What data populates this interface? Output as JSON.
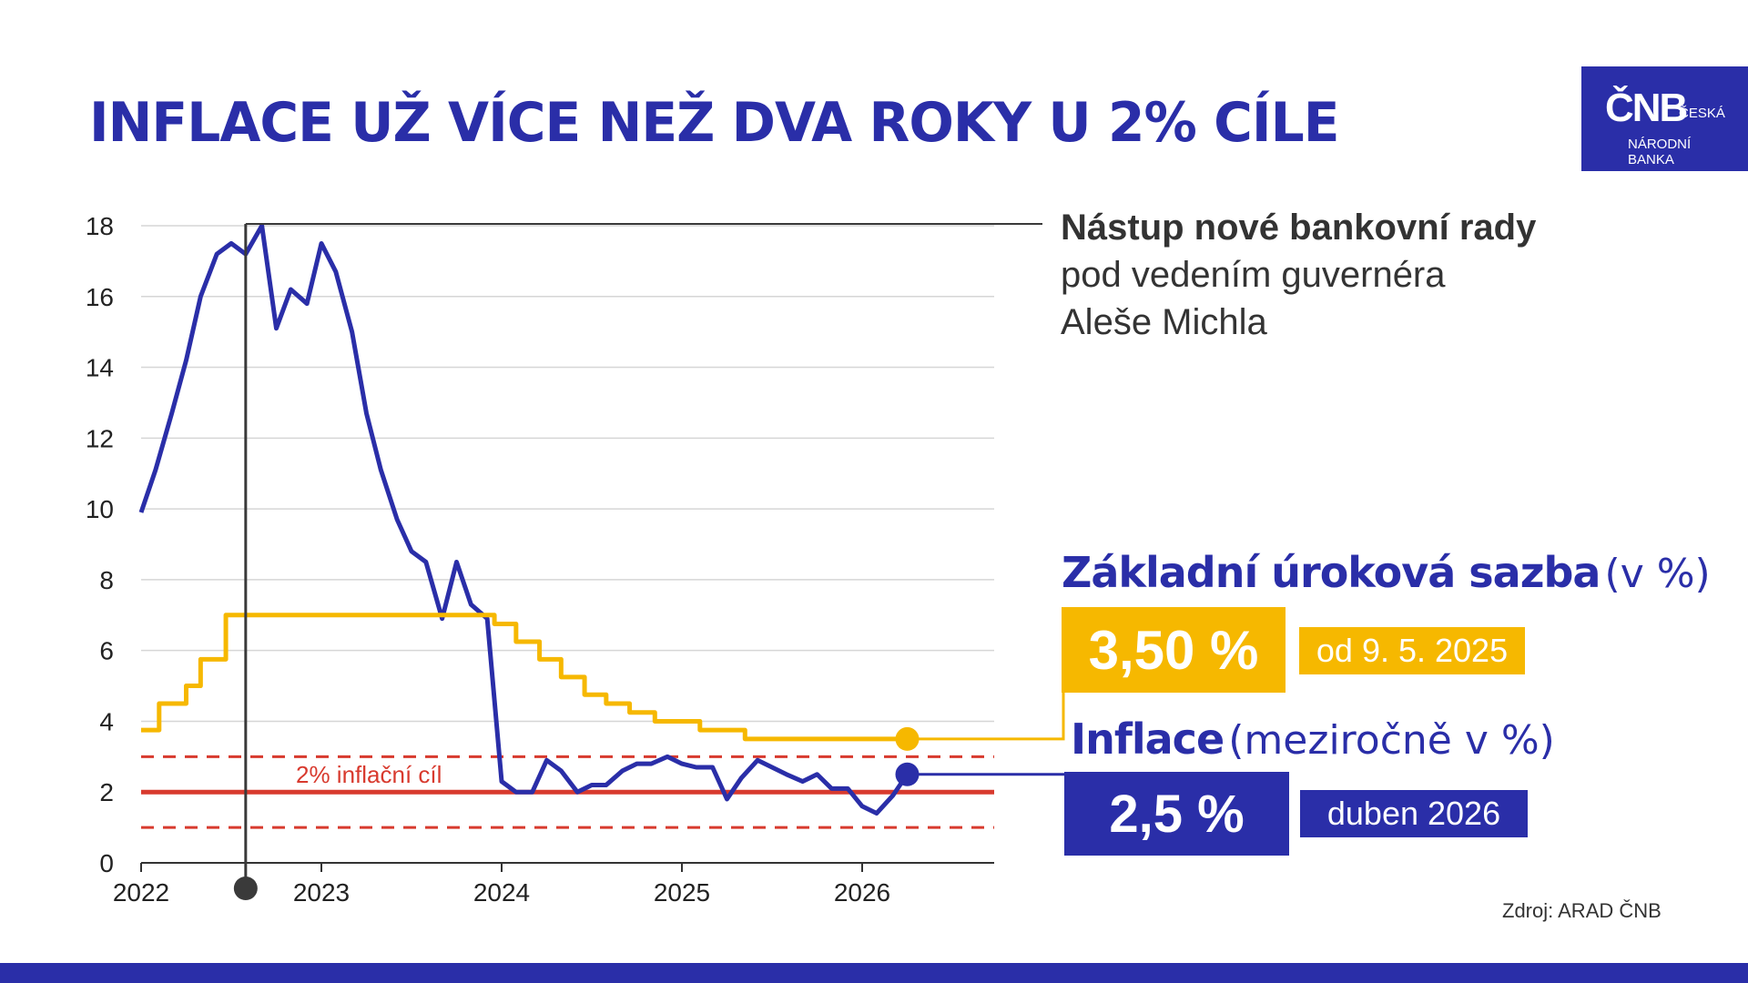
{
  "title": "INFLACE UŽ VÍCE NEŽ DVA ROKY U 2% CÍLE",
  "logo": {
    "mark": "ČNB",
    "line1": "ČESKÁ",
    "line2": "NÁRODNÍ",
    "line3": "BANKA"
  },
  "annotation": {
    "bold": "Nástup nové bankovní rady",
    "line2": "pod vedením guvernéra",
    "line3": "Aleše Michla"
  },
  "rate": {
    "heading": "Základní úroková sazba",
    "unit": "(v %)",
    "value": "3,50 %",
    "since": "od 9. 5. 2025"
  },
  "inflation": {
    "heading": "Inflace",
    "unit": "(meziročně v %)",
    "value": "2,5 %",
    "month": "duben 2026"
  },
  "source": "Zdroj: ARAD ČNB",
  "colors": {
    "brand_blue": "#2a2ea8",
    "rate_yellow": "#f6b800",
    "target_red": "#d83a2e",
    "marker_dark": "#3a3a3a"
  },
  "chart_data": {
    "type": "line",
    "ylim": [
      0,
      18
    ],
    "yticks": [
      0,
      2,
      4,
      6,
      8,
      10,
      12,
      14,
      16,
      18
    ],
    "xlim": [
      2022,
      2026.7
    ],
    "xticks": [
      2022,
      2023,
      2024,
      2025,
      2026
    ],
    "grid": true,
    "target": {
      "label": "2% inflační cíl",
      "value": 2,
      "band": [
        1,
        3
      ]
    },
    "event_marker": {
      "x": 2022.58
    },
    "series": [
      {
        "name": "Inflace",
        "color": "#2a2ea8",
        "points": [
          [
            2022.0,
            9.9
          ],
          [
            2022.08,
            11.1
          ],
          [
            2022.17,
            12.7
          ],
          [
            2022.25,
            14.2
          ],
          [
            2022.33,
            16.0
          ],
          [
            2022.42,
            17.2
          ],
          [
            2022.5,
            17.5
          ],
          [
            2022.58,
            17.2
          ],
          [
            2022.67,
            18.0
          ],
          [
            2022.75,
            15.1
          ],
          [
            2022.83,
            16.2
          ],
          [
            2022.92,
            15.8
          ],
          [
            2023.0,
            17.5
          ],
          [
            2023.08,
            16.7
          ],
          [
            2023.17,
            15.0
          ],
          [
            2023.25,
            12.7
          ],
          [
            2023.33,
            11.1
          ],
          [
            2023.42,
            9.7
          ],
          [
            2023.5,
            8.8
          ],
          [
            2023.58,
            8.5
          ],
          [
            2023.67,
            6.9
          ],
          [
            2023.75,
            8.5
          ],
          [
            2023.83,
            7.3
          ],
          [
            2023.92,
            6.9
          ],
          [
            2024.0,
            2.3
          ],
          [
            2024.08,
            2.0
          ],
          [
            2024.17,
            2.0
          ],
          [
            2024.25,
            2.9
          ],
          [
            2024.33,
            2.6
          ],
          [
            2024.42,
            2.0
          ],
          [
            2024.5,
            2.2
          ],
          [
            2024.58,
            2.2
          ],
          [
            2024.67,
            2.6
          ],
          [
            2024.75,
            2.8
          ],
          [
            2024.83,
            2.8
          ],
          [
            2024.92,
            3.0
          ],
          [
            2025.0,
            2.8
          ],
          [
            2025.08,
            2.7
          ],
          [
            2025.17,
            2.7
          ],
          [
            2025.25,
            1.8
          ],
          [
            2025.33,
            2.4
          ],
          [
            2025.42,
            2.9
          ],
          [
            2025.5,
            2.7
          ],
          [
            2025.58,
            2.5
          ],
          [
            2025.67,
            2.3
          ],
          [
            2025.75,
            2.5
          ],
          [
            2025.83,
            2.1
          ],
          [
            2025.92,
            2.1
          ],
          [
            2026.0,
            1.6
          ],
          [
            2026.08,
            1.4
          ],
          [
            2026.17,
            1.9
          ],
          [
            2026.25,
            2.5
          ]
        ]
      },
      {
        "name": "Základní úroková sazba",
        "color": "#f6b800",
        "step": true,
        "points": [
          [
            2022.0,
            3.75
          ],
          [
            2022.1,
            4.5
          ],
          [
            2022.25,
            5.0
          ],
          [
            2022.33,
            5.75
          ],
          [
            2022.47,
            7.0
          ],
          [
            2023.96,
            6.75
          ],
          [
            2024.08,
            6.25
          ],
          [
            2024.21,
            5.75
          ],
          [
            2024.33,
            5.25
          ],
          [
            2024.46,
            4.75
          ],
          [
            2024.58,
            4.5
          ],
          [
            2024.71,
            4.25
          ],
          [
            2024.85,
            4.0
          ],
          [
            2025.1,
            3.75
          ],
          [
            2025.35,
            3.5
          ],
          [
            2026.25,
            3.5
          ]
        ]
      }
    ]
  }
}
